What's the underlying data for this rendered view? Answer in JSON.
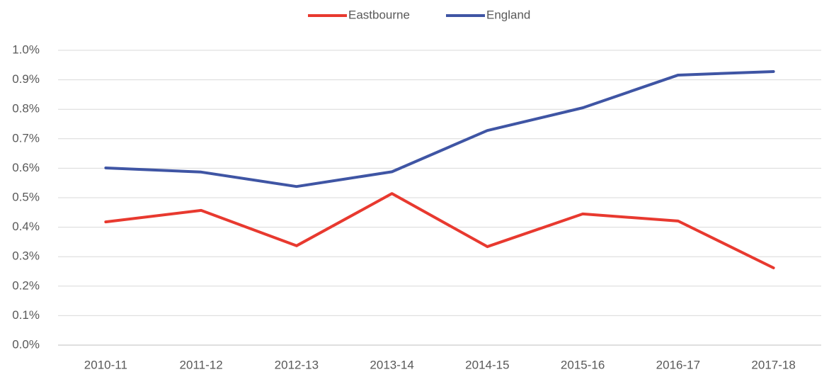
{
  "chart_data": {
    "type": "line",
    "categories": [
      "2010-11",
      "2011-12",
      "2012-13",
      "2013-14",
      "2014-15",
      "2015-16",
      "2016-17",
      "2017-18"
    ],
    "series": [
      {
        "name": "Eastbourne",
        "color": "#e8392f",
        "values": [
          0.418,
          0.457,
          0.337,
          0.514,
          0.334,
          0.445,
          0.421,
          0.262
        ]
      },
      {
        "name": "England",
        "color": "#3f55a4",
        "values": [
          0.601,
          0.587,
          0.538,
          0.588,
          0.728,
          0.805,
          0.916,
          0.928
        ]
      }
    ],
    "ylim": [
      0,
      1
    ],
    "yticks": [
      {
        "value": 0,
        "label": "0.0%"
      },
      {
        "value": 0.1,
        "label": "0.1%"
      },
      {
        "value": 0.2,
        "label": "0.2%"
      },
      {
        "value": 0.3,
        "label": "0.3%"
      },
      {
        "value": 0.4,
        "label": "0.4%"
      },
      {
        "value": 0.5,
        "label": "0.5%"
      },
      {
        "value": 0.6,
        "label": "0.6%"
      },
      {
        "value": 0.7,
        "label": "0.7%"
      },
      {
        "value": 0.8,
        "label": "0.8%"
      },
      {
        "value": 0.9,
        "label": "0.9%"
      },
      {
        "value": 1,
        "label": "1.0%"
      }
    ],
    "grid": true,
    "legend": "top"
  }
}
